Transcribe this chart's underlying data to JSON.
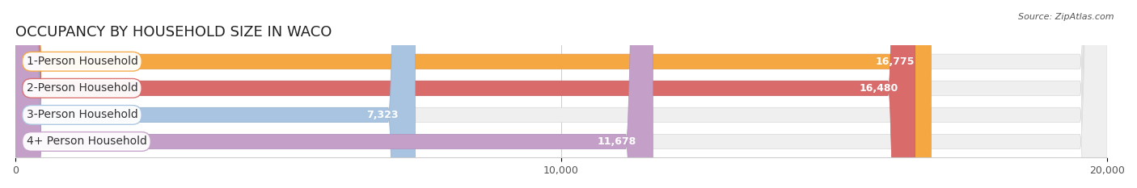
{
  "title": "OCCUPANCY BY HOUSEHOLD SIZE IN WACO",
  "source": "Source: ZipAtlas.com",
  "categories": [
    "1-Person Household",
    "2-Person Household",
    "3-Person Household",
    "4+ Person Household"
  ],
  "values": [
    16775,
    16480,
    7323,
    11678
  ],
  "bar_colors": [
    "#F5A742",
    "#D96B6B",
    "#A8C4E0",
    "#C4A0C8"
  ],
  "bar_edge_colors": [
    "#E8943A",
    "#C85A5A",
    "#90B0D0",
    "#B090BC"
  ],
  "background_color": "#ffffff",
  "bar_bg_color": "#f0f0f0",
  "xlim": [
    0,
    20000
  ],
  "xticks": [
    0,
    10000,
    20000
  ],
  "xtick_labels": [
    "0",
    "10,000",
    "20,000"
  ],
  "label_fontsize": 10,
  "value_fontsize": 9,
  "title_fontsize": 13,
  "bar_height": 0.55,
  "label_box_color": "#ffffff",
  "label_box_edge_colors": [
    "#F5A742",
    "#D96B6B",
    "#A8C4E0",
    "#C4A0C8"
  ]
}
